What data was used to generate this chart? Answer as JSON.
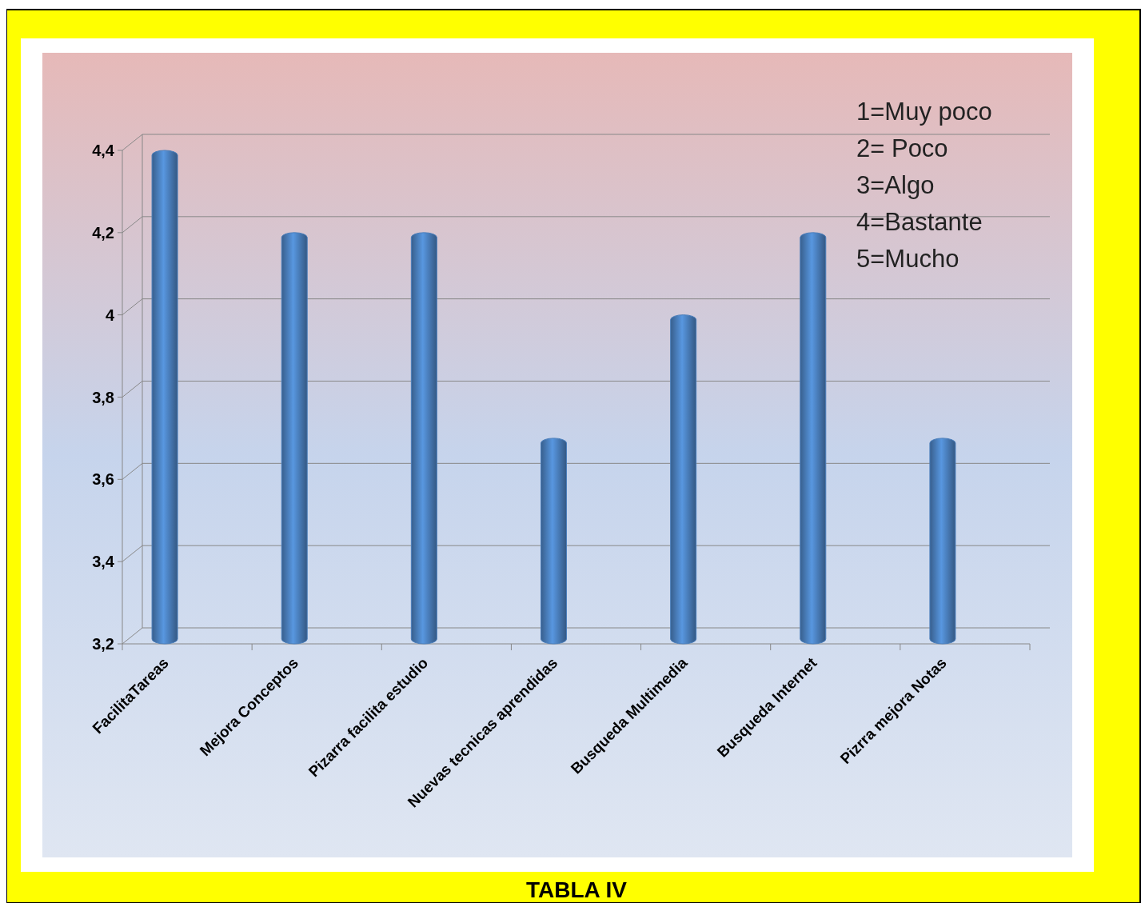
{
  "chart_data": {
    "type": "bar",
    "title": "TABLA  IV",
    "categories": [
      "FacilitaTareas",
      "Mejora Conceptos",
      "Pizarra facilita estudio",
      "Nuevas tecnicas aprendidas",
      "Busqueda Multimedia",
      "Busqueda Internet",
      "Pizrra mejora Notas"
    ],
    "values": [
      4.4,
      4.2,
      4.2,
      3.7,
      4.0,
      4.2,
      3.7
    ],
    "color": "#4a7ebb",
    "ylim": [
      3.2,
      4.4
    ],
    "yticks": [
      {
        "value": 3.2,
        "label": "3,2"
      },
      {
        "value": 3.4,
        "label": "3,4"
      },
      {
        "value": 3.6,
        "label": "3,6"
      },
      {
        "value": 3.8,
        "label": "3,8"
      },
      4,
      {
        "value": 4.2,
        "label": "4,2"
      },
      {
        "value": 4.4,
        "label": "4,4"
      }
    ],
    "grid": "y",
    "annotations": [
      "1=Muy poco",
      "2= Poco",
      "3=Algo",
      "4=Bastante",
      "5=Mucho"
    ]
  }
}
